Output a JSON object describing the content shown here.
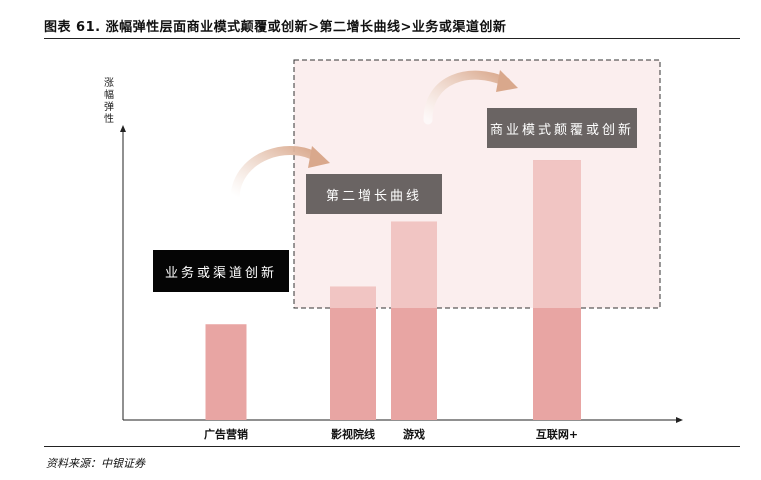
{
  "title": "图表 61. 涨幅弹性层面商业模式颠覆或创新>第二增长曲线>业务或渠道创新",
  "source": "资料来源：中银证券",
  "annotations": {
    "channel_innovation": "业务或渠道创新",
    "second_curve": "第二增长曲线",
    "business_model": "商业模式颠覆或创新"
  },
  "colors": {
    "bar_solid": "#e8a5a3",
    "bar_light": "#f1c5c3",
    "highlight_fill": "#fbeeee",
    "box_dark": "#050505",
    "box_grey": "#6a6463",
    "arrow": "#e0b39a"
  },
  "chart_data": {
    "type": "bar",
    "title": "",
    "xlabel": "",
    "ylabel": "涨幅弹性",
    "categories": [
      "广告营销",
      "影视院线",
      "游戏",
      "互联网+"
    ],
    "values": [
      28,
      39,
      58,
      76
    ],
    "ylim": [
      0,
      100
    ],
    "grid": false
  }
}
